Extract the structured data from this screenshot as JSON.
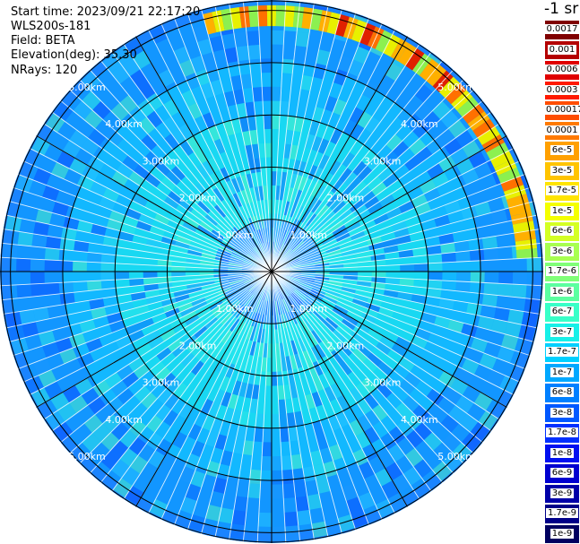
{
  "header": {
    "start_time": "Start time: 2023/09/21 22:17:20",
    "instrument": "WLS200s-181",
    "field": "Field: BETA",
    "elevation": "Elevation(deg): 35.30",
    "nrays": "NRays: 120"
  },
  "colorbar": {
    "title": "-1 sr",
    "bands": [
      {
        "label": "0.0017",
        "color": "#800000"
      },
      {
        "label": "0.001",
        "color": "#b40000"
      },
      {
        "label": "0.0006",
        "color": "#e00000"
      },
      {
        "label": "0.0003",
        "color": "#ff1a00"
      },
      {
        "label": "0.00017",
        "color": "#ff4d00"
      },
      {
        "label": "0.0001",
        "color": "#ff7a00"
      },
      {
        "label": "6e-5",
        "color": "#ffa000"
      },
      {
        "label": "3e-5",
        "color": "#ffc400"
      },
      {
        "label": "1.7e-5",
        "color": "#ffe400"
      },
      {
        "label": "1e-5",
        "color": "#f4ff00"
      },
      {
        "label": "6e-6",
        "color": "#d4ff24"
      },
      {
        "label": "3e-6",
        "color": "#a8ff50"
      },
      {
        "label": "1.7e-6",
        "color": "#80ff78"
      },
      {
        "label": "1e-6",
        "color": "#5cffa0"
      },
      {
        "label": "6e-7",
        "color": "#38ffc8"
      },
      {
        "label": "3e-7",
        "color": "#18f0e8"
      },
      {
        "label": "1.7e-7",
        "color": "#00d0ff"
      },
      {
        "label": "1e-7",
        "color": "#00a8ff"
      },
      {
        "label": "6e-8",
        "color": "#0080ff"
      },
      {
        "label": "3e-8",
        "color": "#0058ff"
      },
      {
        "label": "1.7e-8",
        "color": "#0030ff"
      },
      {
        "label": "1e-8",
        "color": "#0010f0"
      },
      {
        "label": "6e-9",
        "color": "#0000d0"
      },
      {
        "label": "3e-9",
        "color": "#0000a8"
      },
      {
        "label": "1.7e-9",
        "color": "#000088"
      },
      {
        "label": "1e-9",
        "color": "#000060"
      }
    ]
  },
  "chart_data": {
    "type": "heatmap",
    "projection": "polar",
    "n_rays": 120,
    "range_rings_km": [
      1,
      2,
      3,
      4,
      5
    ],
    "ring_labels": [
      "1.00km",
      "2.00km",
      "3.00km",
      "4.00km",
      "5.00km"
    ],
    "max_range_km": 5.2,
    "spoke_angles_deg": [
      0,
      30,
      60,
      90,
      120,
      150,
      180,
      210,
      240,
      270,
      300,
      330
    ],
    "grid": true,
    "field": "BETA",
    "approx_profile": [
      {
        "range_km": 0.5,
        "color": "#3aa8ff"
      },
      {
        "range_km": 1.5,
        "color": "#22e4ee"
      },
      {
        "range_km": 2.5,
        "color": "#18d8f2"
      },
      {
        "range_km": 3.5,
        "color": "#12b8ff"
      },
      {
        "range_km": 4.5,
        "color": "#1296ff"
      },
      {
        "range_km": 5.0,
        "color": "#1a84ff"
      }
    ],
    "high_echo_arc": {
      "from_deg": 345,
      "to_deg": 85,
      "range_km": [
        4.7,
        5.1
      ]
    }
  }
}
